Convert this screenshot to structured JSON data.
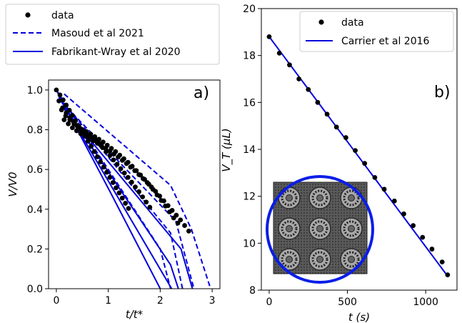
{
  "colors": {
    "model": "#0000dd",
    "data": "#000000"
  },
  "chart_data": [
    {
      "type": "scatter",
      "panel_label": "a)",
      "xlabel": "t/t*",
      "ylabel": "V/V0",
      "xlim": [
        -0.15,
        3.15
      ],
      "ylim": [
        0.0,
        1.05
      ],
      "xticks": [
        0,
        1,
        2,
        3
      ],
      "yticks": [
        0.0,
        0.2,
        0.4,
        0.6,
        0.8,
        1.0
      ],
      "xtick_labels": [
        "0",
        "1",
        "2",
        "3"
      ],
      "ytick_labels": [
        "0.0",
        "0.2",
        "0.4",
        "0.6",
        "0.8",
        "1.0"
      ],
      "legend": {
        "placement": "above",
        "entries": [
          {
            "label": "data",
            "style": "marker"
          },
          {
            "label": "Masoud et al 2021",
            "style": "dashed"
          },
          {
            "label": "Fabrikant-Wray et al 2020",
            "style": "solid"
          }
        ]
      },
      "series": [
        {
          "role": "data",
          "style": "marker",
          "x": [
            0,
            0.07,
            0.13,
            0.19,
            0.25,
            0.31,
            0.37,
            0.43,
            0.49,
            0.55,
            0.61,
            0.67,
            0.73,
            0.79,
            0.85,
            0.91,
            0.97,
            1.03,
            1.09,
            1.15,
            1.21,
            1.27,
            1.33,
            1.39
          ],
          "y": [
            1.0,
            0.975,
            0.95,
            0.924,
            0.898,
            0.872,
            0.846,
            0.82,
            0.794,
            0.768,
            0.742,
            0.716,
            0.69,
            0.664,
            0.638,
            0.612,
            0.586,
            0.56,
            0.534,
            0.508,
            0.482,
            0.456,
            0.43,
            0.404
          ]
        },
        {
          "role": "data",
          "style": "marker",
          "x": [
            0.05,
            0.12,
            0.19,
            0.26,
            0.33,
            0.4,
            0.47,
            0.54,
            0.61,
            0.68,
            0.75,
            0.82,
            0.89,
            0.96,
            1.03,
            1.1,
            1.17,
            1.24,
            1.31,
            1.38,
            1.45,
            1.52,
            1.59,
            1.66,
            1.73,
            1.8
          ],
          "y": [
            0.945,
            0.91,
            0.885,
            0.86,
            0.84,
            0.82,
            0.805,
            0.79,
            0.775,
            0.76,
            0.745,
            0.73,
            0.71,
            0.69,
            0.67,
            0.648,
            0.626,
            0.604,
            0.582,
            0.56,
            0.536,
            0.512,
            0.488,
            0.462,
            0.436,
            0.41
          ]
        },
        {
          "role": "data",
          "style": "marker",
          "x": [
            0.1,
            0.18,
            0.26,
            0.34,
            0.42,
            0.5,
            0.58,
            0.66,
            0.74,
            0.82,
            0.9,
            0.98,
            1.06,
            1.14,
            1.22,
            1.3,
            1.38,
            1.46,
            1.54,
            1.62,
            1.7,
            1.78,
            1.86,
            1.94,
            2.02,
            2.1,
            2.18,
            2.26,
            2.34
          ],
          "y": [
            0.9,
            0.87,
            0.85,
            0.83,
            0.815,
            0.8,
            0.79,
            0.778,
            0.765,
            0.752,
            0.738,
            0.722,
            0.706,
            0.69,
            0.672,
            0.654,
            0.636,
            0.616,
            0.594,
            0.572,
            0.55,
            0.526,
            0.5,
            0.472,
            0.444,
            0.416,
            0.386,
            0.356,
            0.33
          ]
        },
        {
          "role": "data",
          "style": "marker",
          "x": [
            0.15,
            0.23,
            0.31,
            0.39,
            0.47,
            0.55,
            0.63,
            0.71,
            0.79,
            0.87,
            0.95,
            1.03,
            1.11,
            1.19,
            1.27,
            1.35,
            1.43,
            1.51,
            1.59,
            1.67,
            1.75,
            1.83,
            1.91,
            1.99,
            2.07,
            2.15,
            2.23,
            2.31,
            2.39,
            2.47,
            2.55
          ],
          "y": [
            0.85,
            0.83,
            0.81,
            0.795,
            0.78,
            0.768,
            0.756,
            0.744,
            0.732,
            0.72,
            0.706,
            0.692,
            0.678,
            0.662,
            0.646,
            0.63,
            0.612,
            0.594,
            0.574,
            0.554,
            0.534,
            0.512,
            0.49,
            0.466,
            0.442,
            0.418,
            0.394,
            0.37,
            0.346,
            0.318,
            0.29
          ]
        },
        {
          "role": "Masoud et al 2021",
          "style": "dashed",
          "x": [
            0,
            2.0,
            2.2
          ],
          "y": [
            1.0,
            0.2,
            0.0
          ]
        },
        {
          "role": "Masoud et al 2021",
          "style": "dashed",
          "x": [
            0.05,
            2.2,
            2.43
          ],
          "y": [
            0.965,
            0.28,
            0.0
          ]
        },
        {
          "role": "Masoud et al 2021",
          "style": "dashed",
          "x": [
            0.1,
            2.3,
            2.65
          ],
          "y": [
            0.94,
            0.34,
            0.0
          ]
        },
        {
          "role": "Masoud et al 2021",
          "style": "dashed",
          "x": [
            0.15,
            2.2,
            2.6,
            2.97
          ],
          "y": [
            0.98,
            0.52,
            0.3,
            0.0
          ]
        },
        {
          "role": "Fabrikant-Wray et al 2020",
          "style": "solid",
          "x": [
            0,
            1.05,
            2.0
          ],
          "y": [
            1.0,
            0.48,
            0.0
          ]
        },
        {
          "role": "Fabrikant-Wray et al 2020",
          "style": "solid",
          "x": [
            0.05,
            1.5,
            2.22
          ],
          "y": [
            0.965,
            0.32,
            0.0
          ]
        },
        {
          "role": "Fabrikant-Wray et al 2020",
          "style": "solid",
          "x": [
            0.1,
            2.2,
            2.35
          ],
          "y": [
            0.94,
            0.12,
            0.0
          ]
        },
        {
          "role": "Fabrikant-Wray et al 2020",
          "style": "solid",
          "x": [
            0.15,
            2.4,
            2.62
          ],
          "y": [
            0.905,
            0.2,
            0.0
          ]
        }
      ]
    },
    {
      "type": "scatter",
      "panel_label": "b)",
      "xlabel": "t (s)",
      "ylabel": "V_T (µL)",
      "xlim": [
        -50,
        1200
      ],
      "ylim": [
        8,
        20
      ],
      "xticks": [
        0,
        500,
        1000
      ],
      "yticks": [
        8,
        10,
        12,
        14,
        16,
        18,
        20
      ],
      "xtick_labels": [
        "0",
        "500",
        "1000"
      ],
      "ytick_labels": [
        "8",
        "10",
        "12",
        "14",
        "16",
        "18",
        "20"
      ],
      "legend": {
        "placement": "top-right",
        "entries": [
          {
            "label": "data",
            "style": "marker"
          },
          {
            "label": "Carrier et al 2016",
            "style": "solid"
          }
        ]
      },
      "series": [
        {
          "role": "data",
          "style": "marker",
          "x": [
            0,
            65,
            130,
            190,
            250,
            310,
            370,
            430,
            490,
            550,
            610,
            675,
            735,
            800,
            860,
            920,
            980,
            1040,
            1105,
            1140
          ],
          "y": [
            18.8,
            18.1,
            17.6,
            17.0,
            16.55,
            16.0,
            15.5,
            14.95,
            14.5,
            13.95,
            13.4,
            12.8,
            12.3,
            11.8,
            11.25,
            10.75,
            10.25,
            9.75,
            9.2,
            8.65
          ]
        },
        {
          "role": "Carrier et al 2016",
          "style": "solid",
          "x": [
            0,
            1140
          ],
          "y": [
            18.8,
            8.6
          ]
        }
      ]
    }
  ]
}
